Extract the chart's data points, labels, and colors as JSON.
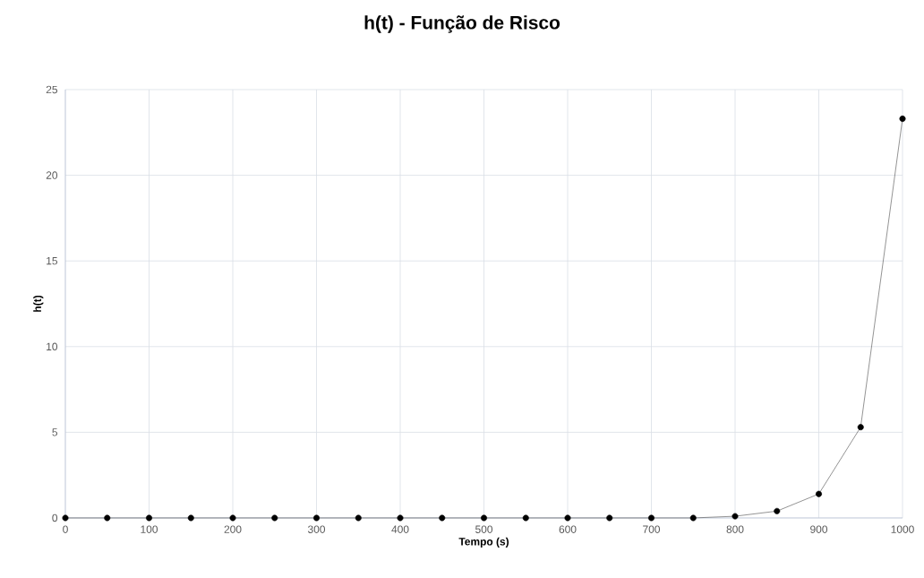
{
  "chart_data": {
    "type": "line",
    "title": "h(t) - Função de Risco",
    "xlabel": "Tempo (s)",
    "ylabel": "h(t)",
    "x": [
      0,
      50,
      100,
      150,
      200,
      250,
      300,
      350,
      400,
      450,
      500,
      550,
      600,
      650,
      700,
      750,
      800,
      850,
      900,
      950,
      1000
    ],
    "series": [
      {
        "color": "#000000",
        "values": [
          0,
          0,
          0,
          0,
          0,
          0,
          0,
          0,
          0,
          0,
          0,
          0,
          0,
          0,
          0,
          0,
          0.1,
          0.4,
          1.4,
          5.3,
          23.3
        ]
      }
    ],
    "xlim": [
      0,
      1000
    ],
    "xticks": [
      0,
      100,
      200,
      300,
      400,
      500,
      600,
      700,
      800,
      900,
      1000
    ],
    "ylim": [
      0,
      25
    ],
    "yticks": [
      0,
      5,
      10,
      15,
      20,
      25
    ],
    "grid": true,
    "marker": "circle",
    "line_style": "solid"
  }
}
